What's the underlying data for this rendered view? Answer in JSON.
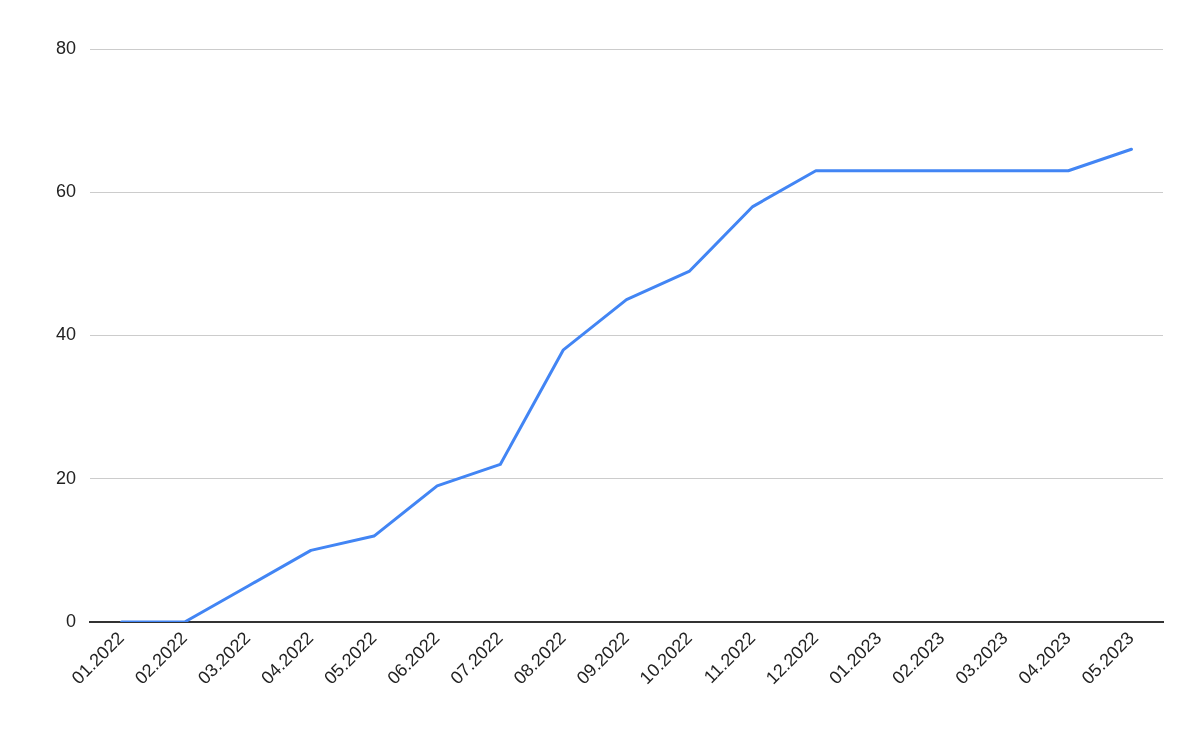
{
  "chart_data": {
    "type": "line",
    "categories": [
      "01.2022",
      "02.2022",
      "03.2022",
      "04.2022",
      "05.2022",
      "06.2022",
      "07.2022",
      "08.2022",
      "09.2022",
      "10.2022",
      "11.2022",
      "12.2022",
      "01.2023",
      "02.2023",
      "03.2023",
      "04.2023",
      "05.2023"
    ],
    "series": [
      {
        "color": "#4285f4",
        "values": [
          0,
          0,
          5,
          10,
          12,
          19,
          22,
          38,
          45,
          49,
          58,
          63,
          63,
          63,
          63,
          63,
          66
        ]
      }
    ],
    "ylim": [
      0,
      80
    ],
    "yticks": [
      0,
      20,
      40,
      60,
      80
    ],
    "grid": "y",
    "marker": "none"
  }
}
